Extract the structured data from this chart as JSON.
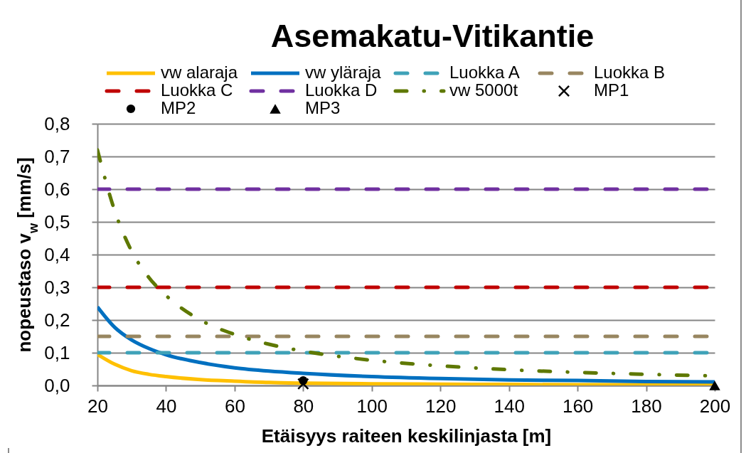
{
  "chart_data": {
    "type": "line",
    "title": "Asemakatu-Vitikantie",
    "xlabel": "Etäisyys raiteen keskilinjasta [m]",
    "ylabel": "nopeustaso v$_{w}$ [mm/s]",
    "xlim": [
      20,
      200
    ],
    "xticks": [
      20,
      40,
      60,
      80,
      100,
      120,
      140,
      160,
      180,
      200
    ],
    "ylim": [
      0,
      0.8
    ],
    "yticks": [
      {
        "value": 0,
        "label": "0,0"
      },
      {
        "value": 0.1,
        "label": "0,1"
      },
      {
        "value": 0.2,
        "label": "0,2"
      },
      {
        "value": 0.3,
        "label": "0,3"
      },
      {
        "value": 0.4,
        "label": "0,4"
      },
      {
        "value": 0.5,
        "label": "0,5"
      },
      {
        "value": 0.6,
        "label": "0,6"
      },
      {
        "value": 0.7,
        "label": "0,7"
      },
      {
        "value": 0.8,
        "label": "0,8"
      }
    ],
    "grid": "y",
    "legend": "top",
    "series": [
      {
        "name": "vw alaraja",
        "type": "line",
        "color": "#ffc000",
        "line_style": "solid",
        "x": [
          20,
          25,
          30,
          35,
          40,
          50,
          60,
          70,
          80,
          100,
          120,
          140,
          160,
          180,
          200
        ],
        "values": [
          0.095,
          0.065,
          0.045,
          0.034,
          0.027,
          0.018,
          0.013,
          0.009,
          0.007,
          0.005,
          0.004,
          0.003,
          0.002,
          0.002,
          0.001
        ]
      },
      {
        "name": "vw yläraja",
        "type": "line",
        "color": "#0070c0",
        "line_style": "solid",
        "x": [
          20,
          25,
          30,
          35,
          40,
          50,
          60,
          70,
          80,
          100,
          120,
          140,
          160,
          180,
          200
        ],
        "values": [
          0.24,
          0.178,
          0.139,
          0.113,
          0.094,
          0.07,
          0.054,
          0.044,
          0.037,
          0.027,
          0.021,
          0.017,
          0.015,
          0.012,
          0.011
        ]
      },
      {
        "name": "Luokka A",
        "type": "line",
        "color": "#3fa2b8",
        "line_style": "dashed",
        "x": [
          20,
          200
        ],
        "values": [
          0.1,
          0.1
        ]
      },
      {
        "name": "Luokka B",
        "type": "line",
        "color": "#988660",
        "line_style": "dashed",
        "x": [
          20,
          200
        ],
        "values": [
          0.15,
          0.15
        ]
      },
      {
        "name": "Luokka C",
        "type": "line",
        "color": "#c00000",
        "line_style": "dashed",
        "x": [
          20,
          200
        ],
        "values": [
          0.3,
          0.3
        ]
      },
      {
        "name": "Luokka D",
        "type": "line",
        "color": "#7030a0",
        "line_style": "dashed",
        "x": [
          20,
          200
        ],
        "values": [
          0.6,
          0.6
        ]
      },
      {
        "name": "vw 5000t",
        "type": "line",
        "color": "#5e7800",
        "line_style": "dashdot",
        "x": [
          20,
          25,
          30,
          35,
          40,
          50,
          60,
          70,
          80,
          100,
          120,
          140,
          160,
          180,
          200
        ],
        "values": [
          0.72,
          0.535,
          0.41,
          0.33,
          0.275,
          0.2,
          0.156,
          0.126,
          0.105,
          0.077,
          0.06,
          0.048,
          0.04,
          0.034,
          0.029
        ]
      },
      {
        "name": "MP1",
        "type": "scatter",
        "color": "#000000",
        "marker": "cross",
        "x": [
          80
        ],
        "values": [
          0.005
        ]
      },
      {
        "name": "MP2",
        "type": "scatter",
        "color": "#000000",
        "marker": "circle",
        "x": [
          80
        ],
        "values": [
          0.015
        ]
      },
      {
        "name": "MP3",
        "type": "scatter",
        "color": "#000000",
        "marker": "triangle",
        "x": [
          200
        ],
        "values": [
          0
        ]
      }
    ]
  }
}
